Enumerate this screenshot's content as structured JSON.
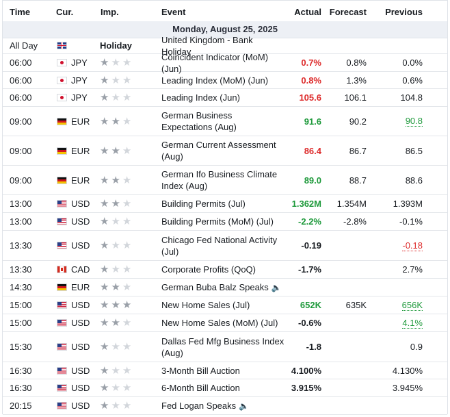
{
  "header": {
    "time": "Time",
    "cur": "Cur.",
    "imp": "Imp.",
    "event": "Event",
    "actual": "Actual",
    "forecast": "Forecast",
    "previous": "Previous"
  },
  "date_label": "Monday, August 25, 2025",
  "colors": {
    "positive": "#1f9a3c",
    "negative": "#dd2b2b",
    "date_band": "#edf0f5"
  },
  "rows": [
    {
      "time": "All Day",
      "flag": "uk-flag",
      "currency": "",
      "impact_label": "Holiday",
      "stars": 0,
      "event": "United Kingdom - Bank Holiday",
      "actual": "",
      "actual_tone": "",
      "forecast": "",
      "previous": "",
      "previous_tone": "",
      "speech": false
    },
    {
      "time": "06:00",
      "flag": "jp-flag",
      "currency": "JPY",
      "impact_label": "",
      "stars": 1,
      "event": "Coincident Indicator (MoM) (Jun)",
      "actual": "0.7%",
      "actual_tone": "red",
      "forecast": "0.8%",
      "previous": "0.0%",
      "previous_tone": "",
      "speech": false
    },
    {
      "time": "06:00",
      "flag": "jp-flag",
      "currency": "JPY",
      "impact_label": "",
      "stars": 1,
      "event": "Leading Index (MoM) (Jun)",
      "actual": "0.8%",
      "actual_tone": "red",
      "forecast": "1.3%",
      "previous": "0.6%",
      "previous_tone": "",
      "speech": false
    },
    {
      "time": "06:00",
      "flag": "jp-flag",
      "currency": "JPY",
      "impact_label": "",
      "stars": 1,
      "event": "Leading Index (Jun)",
      "actual": "105.6",
      "actual_tone": "red",
      "forecast": "106.1",
      "previous": "104.8",
      "previous_tone": "",
      "speech": false
    },
    {
      "time": "09:00",
      "flag": "de-flag",
      "currency": "EUR",
      "impact_label": "",
      "stars": 2,
      "event": "German Business Expectations (Aug)",
      "actual": "91.6",
      "actual_tone": "green",
      "forecast": "90.2",
      "previous": "90.8",
      "previous_tone": "ul-green",
      "speech": false
    },
    {
      "time": "09:00",
      "flag": "de-flag",
      "currency": "EUR",
      "impact_label": "",
      "stars": 2,
      "event": "German Current Assessment (Aug)",
      "actual": "86.4",
      "actual_tone": "red",
      "forecast": "86.7",
      "previous": "86.5",
      "previous_tone": "",
      "speech": false
    },
    {
      "time": "09:00",
      "flag": "de-flag",
      "currency": "EUR",
      "impact_label": "",
      "stars": 2,
      "event": "German Ifo Business Climate Index (Aug)",
      "actual": "89.0",
      "actual_tone": "green",
      "forecast": "88.7",
      "previous": "88.6",
      "previous_tone": "",
      "speech": false
    },
    {
      "time": "13:00",
      "flag": "us-flag",
      "currency": "USD",
      "impact_label": "",
      "stars": 2,
      "event": "Building Permits (Jul)",
      "actual": "1.362M",
      "actual_tone": "green",
      "forecast": "1.354M",
      "previous": "1.393M",
      "previous_tone": "",
      "speech": false
    },
    {
      "time": "13:00",
      "flag": "us-flag",
      "currency": "USD",
      "impact_label": "",
      "stars": 1,
      "event": "Building Permits (MoM) (Jul)",
      "actual": "-2.2%",
      "actual_tone": "green",
      "forecast": "-2.8%",
      "previous": "-0.1%",
      "previous_tone": "",
      "speech": false
    },
    {
      "time": "13:30",
      "flag": "us-flag",
      "currency": "USD",
      "impact_label": "",
      "stars": 1,
      "event": "Chicago Fed National Activity (Jul)",
      "actual": "-0.19",
      "actual_tone": "",
      "forecast": "",
      "previous": "-0.18",
      "previous_tone": "ul-red",
      "speech": false
    },
    {
      "time": "13:30",
      "flag": "ca-flag",
      "currency": "CAD",
      "impact_label": "",
      "stars": 1,
      "event": "Corporate Profits (QoQ)",
      "actual": "-1.7%",
      "actual_tone": "",
      "forecast": "",
      "previous": "2.7%",
      "previous_tone": "",
      "speech": false
    },
    {
      "time": "14:30",
      "flag": "de-flag",
      "currency": "EUR",
      "impact_label": "",
      "stars": 2,
      "event": "German Buba Balz Speaks",
      "actual": "",
      "actual_tone": "",
      "forecast": "",
      "previous": "",
      "previous_tone": "",
      "speech": true
    },
    {
      "time": "15:00",
      "flag": "us-flag",
      "currency": "USD",
      "impact_label": "",
      "stars": 3,
      "event": "New Home Sales (Jul)",
      "actual": "652K",
      "actual_tone": "green",
      "forecast": "635K",
      "previous": "656K",
      "previous_tone": "ul-green",
      "speech": false
    },
    {
      "time": "15:00",
      "flag": "us-flag",
      "currency": "USD",
      "impact_label": "",
      "stars": 2,
      "event": "New Home Sales (MoM) (Jul)",
      "actual": "-0.6%",
      "actual_tone": "",
      "forecast": "",
      "previous": "4.1%",
      "previous_tone": "ul-green",
      "speech": false
    },
    {
      "time": "15:30",
      "flag": "us-flag",
      "currency": "USD",
      "impact_label": "",
      "stars": 1,
      "event": "Dallas Fed Mfg Business Index (Aug)",
      "actual": "-1.8",
      "actual_tone": "",
      "forecast": "",
      "previous": "0.9",
      "previous_tone": "",
      "speech": false
    },
    {
      "time": "16:30",
      "flag": "us-flag",
      "currency": "USD",
      "impact_label": "",
      "stars": 1,
      "event": "3-Month Bill Auction",
      "actual": "4.100%",
      "actual_tone": "",
      "forecast": "",
      "previous": "4.130%",
      "previous_tone": "",
      "speech": false
    },
    {
      "time": "16:30",
      "flag": "us-flag",
      "currency": "USD",
      "impact_label": "",
      "stars": 1,
      "event": "6-Month Bill Auction",
      "actual": "3.915%",
      "actual_tone": "",
      "forecast": "",
      "previous": "3.945%",
      "previous_tone": "",
      "speech": false
    },
    {
      "time": "20:15",
      "flag": "us-flag",
      "currency": "USD",
      "impact_label": "",
      "stars": 1,
      "event": "Fed Logan Speaks",
      "actual": "",
      "actual_tone": "",
      "forecast": "",
      "previous": "",
      "previous_tone": "",
      "speech": true
    }
  ]
}
